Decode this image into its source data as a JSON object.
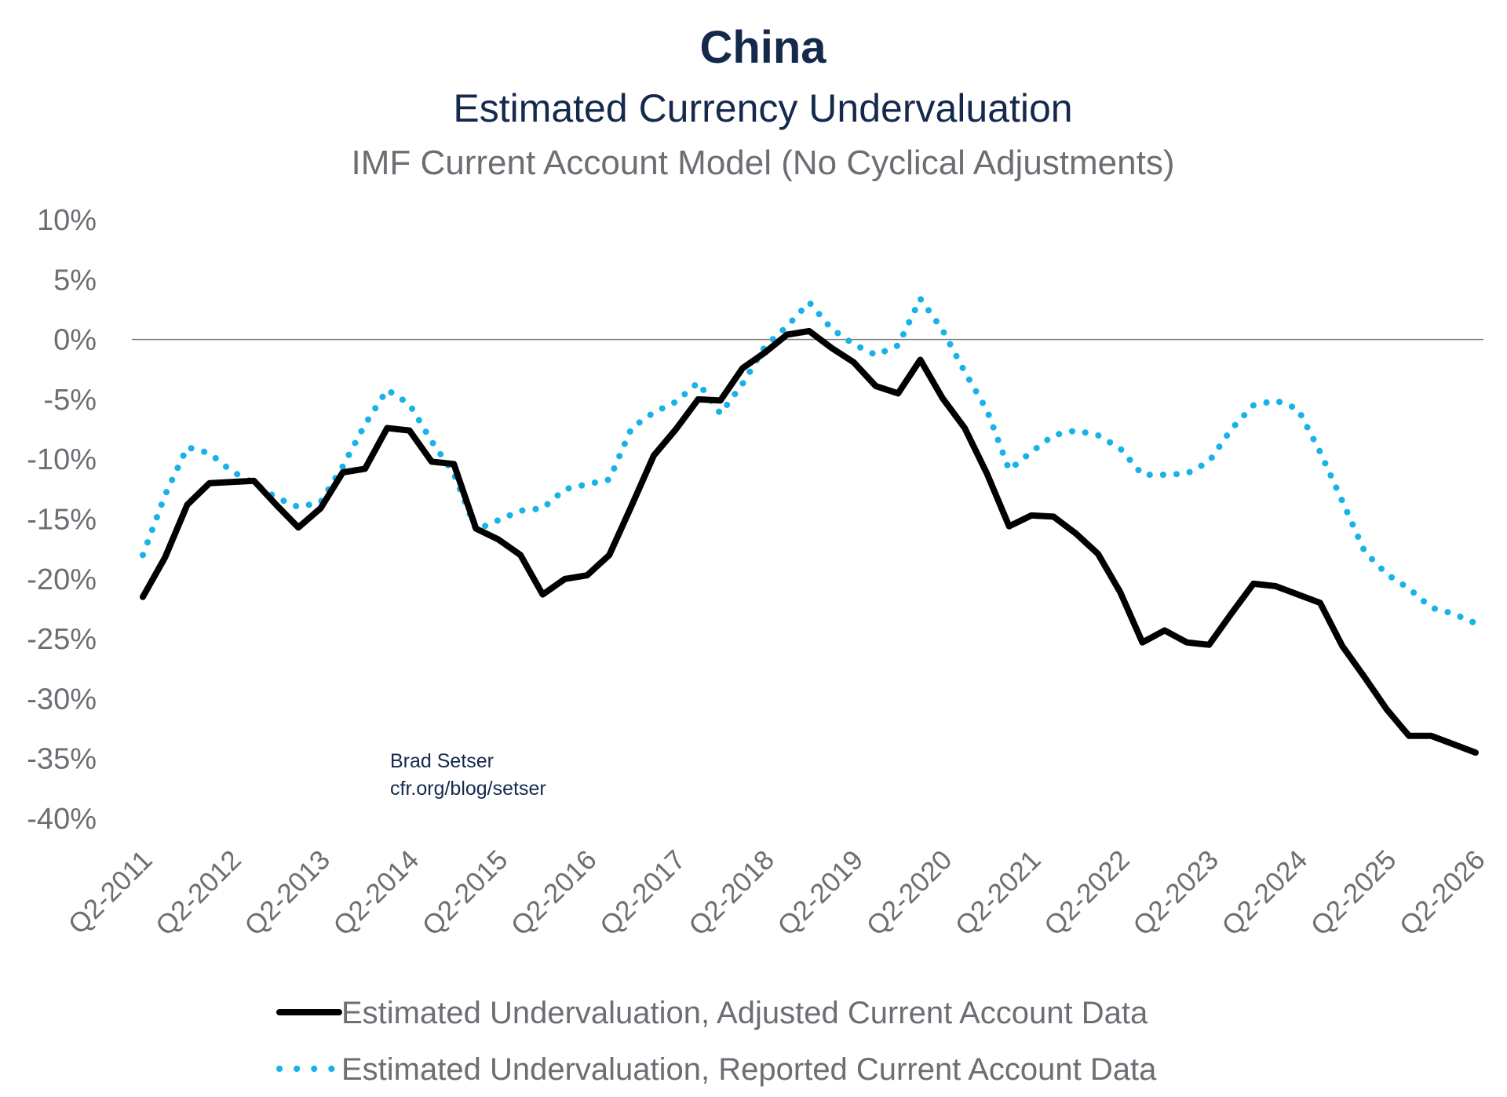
{
  "chart_data": {
    "type": "line",
    "title": "China",
    "subtitle": "Estimated Currency Undervaluation",
    "subtitle2": "IMF Current Account Model (No Cyclical Adjustments)",
    "xlabel": "",
    "ylabel": "",
    "ylim": [
      -40,
      10
    ],
    "y_ticks": [
      10,
      5,
      0,
      -5,
      -10,
      -15,
      -20,
      -25,
      -30,
      -35,
      -40
    ],
    "y_tick_labels": [
      "10%",
      "5%",
      "0%",
      "-5%",
      "-10%",
      "-15%",
      "-20%",
      "-25%",
      "-30%",
      "-35%",
      "-40%"
    ],
    "x_tick_labels": [
      "Q2-2011",
      "Q2-2012",
      "Q2-2013",
      "Q2-2014",
      "Q2-2015",
      "Q2-2016",
      "Q2-2017",
      "Q2-2018",
      "Q2-2019",
      "Q2-2020",
      "Q2-2021",
      "Q2-2022",
      "Q2-2023",
      "Q2-2024",
      "Q2-2025",
      "Q2-2026"
    ],
    "grid": false,
    "zero_line": true,
    "legend_position": "bottom",
    "annotation": [
      "Brad Setser",
      "cfr.org/blog/setser"
    ],
    "x": [
      "Q2-2011",
      "Q3-2011",
      "Q4-2011",
      "Q1-2012",
      "Q2-2012",
      "Q3-2012",
      "Q4-2012",
      "Q1-2013",
      "Q2-2013",
      "Q3-2013",
      "Q4-2013",
      "Q1-2014",
      "Q2-2014",
      "Q3-2014",
      "Q4-2014",
      "Q1-2015",
      "Q2-2015",
      "Q3-2015",
      "Q4-2015",
      "Q1-2016",
      "Q2-2016",
      "Q3-2016",
      "Q4-2016",
      "Q1-2017",
      "Q2-2017",
      "Q3-2017",
      "Q4-2017",
      "Q1-2018",
      "Q2-2018",
      "Q3-2018",
      "Q4-2018",
      "Q1-2019",
      "Q2-2019",
      "Q3-2019",
      "Q4-2019",
      "Q1-2020",
      "Q2-2020",
      "Q3-2020",
      "Q4-2020",
      "Q1-2021",
      "Q2-2021",
      "Q3-2021",
      "Q4-2021",
      "Q1-2022",
      "Q2-2022",
      "Q3-2022",
      "Q4-2022",
      "Q1-2023",
      "Q2-2023",
      "Q3-2023",
      "Q4-2023",
      "Q1-2024",
      "Q2-2024",
      "Q3-2024",
      "Q4-2024",
      "Q1-2025",
      "Q2-2025",
      "Q3-2025",
      "Q4-2025",
      "Q1-2026",
      "Q2-2026"
    ],
    "series": [
      {
        "name": "Estimated Undervaluation, Adjusted Current Account Data",
        "color": "#000000",
        "style": "solid",
        "values": [
          -21.5,
          -18.2,
          -13.8,
          -12.0,
          -11.9,
          -11.8,
          -13.8,
          -15.7,
          -14.1,
          -11.1,
          -10.8,
          -7.4,
          -7.6,
          -10.2,
          -10.4,
          -15.8,
          -16.7,
          -18.0,
          -21.3,
          -20.0,
          -19.7,
          -18.0,
          -13.9,
          -9.7,
          -7.5,
          -5.0,
          -5.1,
          -2.4,
          -1.1,
          0.4,
          0.7,
          -0.7,
          -1.9,
          -3.9,
          -4.5,
          -1.7,
          -4.9,
          -7.4,
          -11.2,
          -15.6,
          -14.7,
          -14.8,
          -16.2,
          -17.9,
          -21.1,
          -25.3,
          -24.3,
          -25.3,
          -25.5,
          -22.9,
          -20.4,
          -20.6,
          -21.3,
          -22.0,
          -25.6,
          -28.2,
          -30.9,
          -33.1,
          -33.1,
          -33.8,
          -34.5
        ]
      },
      {
        "name": "Estimated Undervaluation, Reported Current Account Data",
        "color": "#17b2e7",
        "style": "dotted",
        "values": [
          -18.0,
          -13.0,
          -9.0,
          -9.5,
          -11.0,
          -12.0,
          -13.2,
          -14.0,
          -13.6,
          -10.6,
          -7.1,
          -4.2,
          -5.4,
          -8.5,
          -11.2,
          -15.9,
          -15.1,
          -14.3,
          -14.1,
          -12.5,
          -12.1,
          -11.7,
          -7.4,
          -6.1,
          -5.2,
          -3.6,
          -6.2,
          -3.7,
          -0.6,
          1.1,
          3.1,
          0.9,
          -0.4,
          -1.3,
          -0.5,
          3.4,
          0.8,
          -2.7,
          -5.9,
          -10.9,
          -9.4,
          -8.0,
          -7.6,
          -8.0,
          -9.1,
          -11.3,
          -11.3,
          -11.2,
          -10.2,
          -7.5,
          -5.5,
          -5.1,
          -5.8,
          -9.4,
          -13.5,
          -17.7,
          -19.6,
          -20.8,
          -22.4,
          -22.9,
          -23.7
        ]
      }
    ]
  }
}
